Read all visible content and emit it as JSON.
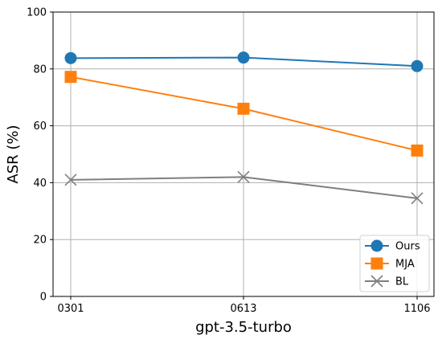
{
  "chart_data": {
    "type": "line",
    "categories": [
      "0301",
      "0613",
      "1106"
    ],
    "xlabel": "gpt-3.5-turbo",
    "ylabel": "ASR (%)",
    "ylim": [
      0,
      100
    ],
    "yticks": [
      0,
      20,
      40,
      60,
      80,
      100
    ],
    "grid": true,
    "legend_position": "bottom-right",
    "series": [
      {
        "name": "Ours",
        "values": [
          83.8,
          84.0,
          81.0
        ],
        "color": "#1f77b4",
        "marker": "circle"
      },
      {
        "name": "MJA",
        "values": [
          77.2,
          66.0,
          51.3
        ],
        "color": "#ff7f0e",
        "marker": "square"
      },
      {
        "name": "BL",
        "values": [
          41.0,
          42.0,
          34.5
        ],
        "color": "#7f7f7f",
        "marker": "x"
      }
    ]
  }
}
